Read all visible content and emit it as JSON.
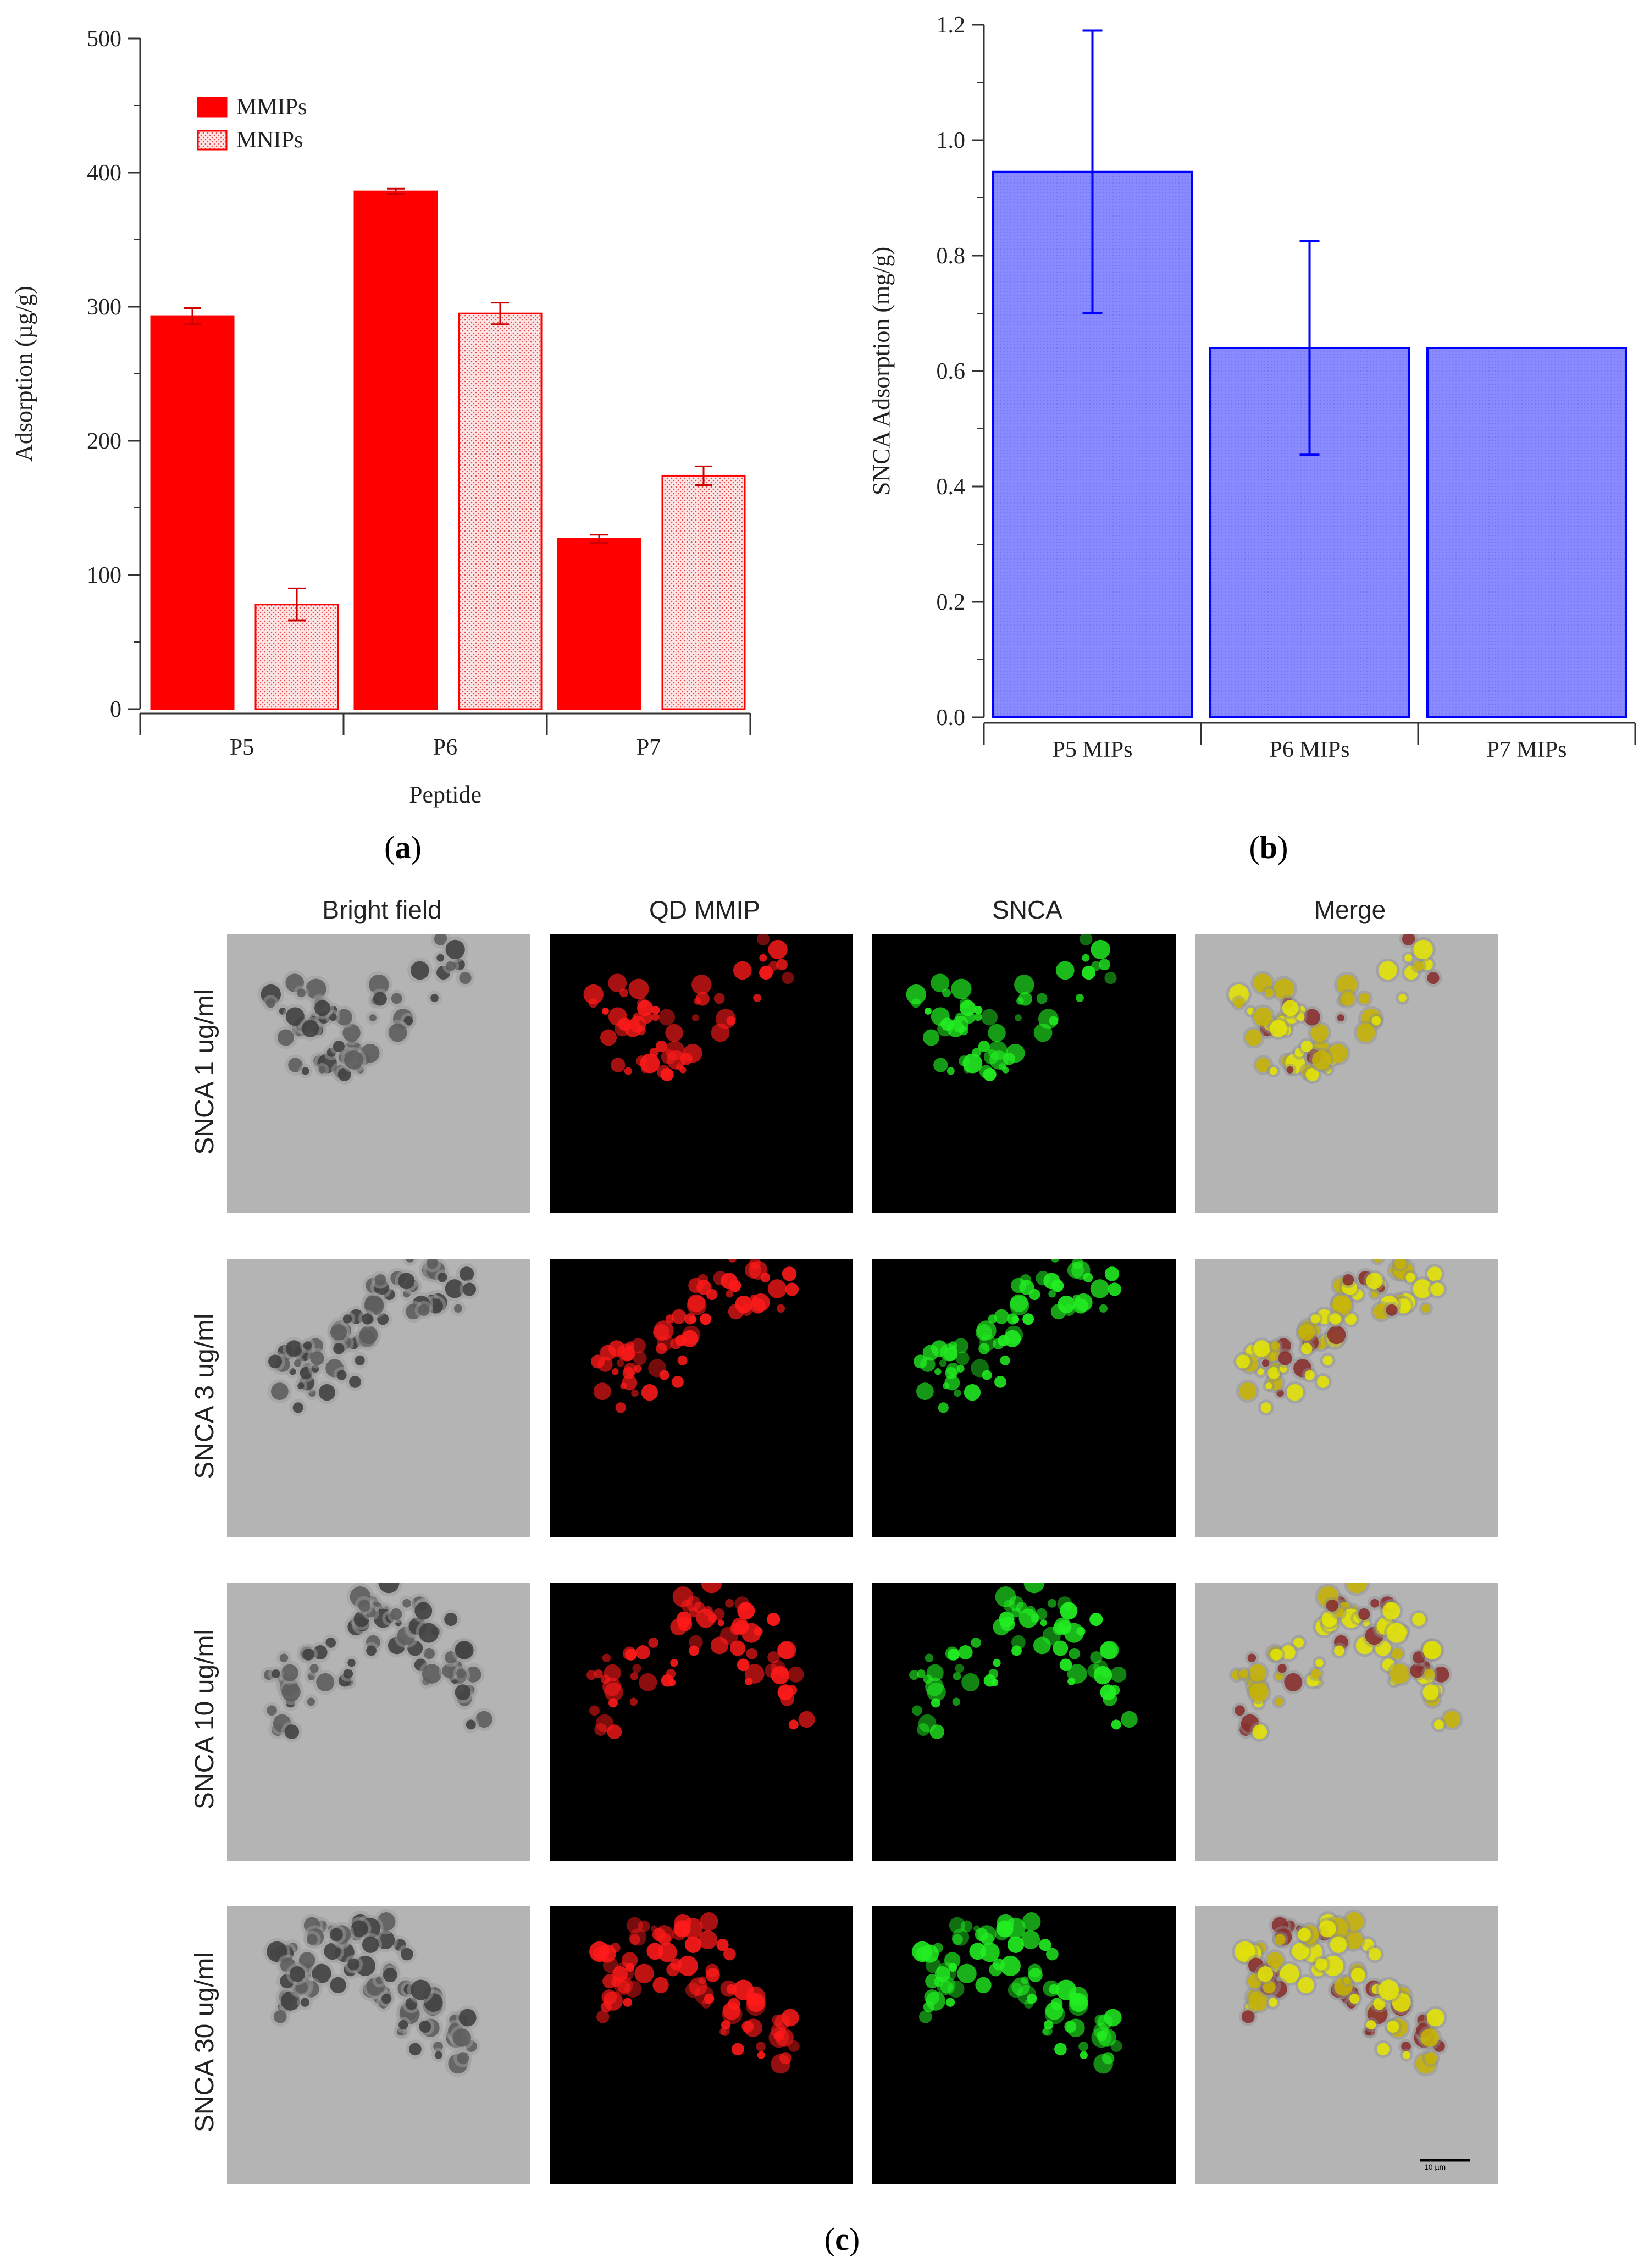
{
  "chart_data": [
    {
      "panel": "a",
      "type": "bar",
      "xlabel": "Peptide",
      "ylabel": "Adsorption (µg/g)",
      "ylim": [
        0,
        500
      ],
      "yticks": [
        "0",
        "100",
        "200",
        "300",
        "400",
        "500"
      ],
      "categories": [
        "P5",
        "P6",
        "P7"
      ],
      "series": [
        {
          "name": "MMIPs",
          "values": [
            293,
            386,
            127
          ],
          "errors": [
            6,
            2,
            3
          ],
          "color": "#ff0000",
          "pattern": "solid"
        },
        {
          "name": "MNIPs",
          "values": [
            78,
            295,
            174
          ],
          "errors": [
            12,
            8,
            7
          ],
          "color": "#ff0000",
          "pattern": "dotted"
        }
      ],
      "legend": "top-left",
      "grid": false
    },
    {
      "panel": "b",
      "type": "bar",
      "xlabel": "",
      "ylabel": "SNCA Adsorption (mg/g)",
      "ylim": [
        0,
        1.2
      ],
      "yticks": [
        "0.0",
        "0.2",
        "0.4",
        "0.6",
        "0.8",
        "1.0",
        "1.2"
      ],
      "categories": [
        "P5 MIPs",
        "P6 MIPs",
        "P7 MIPs"
      ],
      "series": [
        {
          "values": [
            0.945,
            0.64,
            0.64
          ],
          "err_low": [
            0.7,
            0.455,
            null
          ],
          "err_high": [
            1.19,
            0.825,
            null
          ],
          "color": "#0000ff",
          "fill": "#8080ff"
        }
      ],
      "grid": false
    }
  ],
  "labels": {
    "a": "a",
    "b": "b",
    "c": "c"
  },
  "microscopy": {
    "columns": [
      "Bright field",
      "QD MMIP",
      "SNCA",
      "Merge"
    ],
    "rows": [
      "SNCA 1 ug/ml",
      "SNCA 3 ug/ml",
      "SNCA 10 ug/ml",
      "SNCA 30 ug/ml"
    ],
    "scale_bar": "10 µm",
    "colors": {
      "bright_bg": "#b4b4b4",
      "qd": "#ff1a1a",
      "snca": "#22ee22",
      "merge": "#e6e600"
    }
  }
}
